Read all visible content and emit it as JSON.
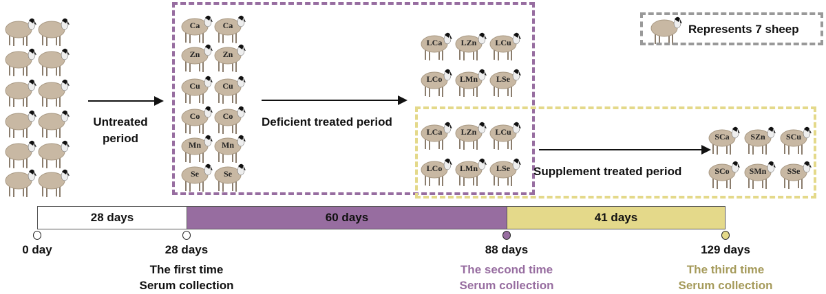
{
  "colors": {
    "deficient": "#976da0",
    "supplement": "#e4d98a",
    "supplement_text": "#a59a5a",
    "legend_border": "#999999",
    "sheep_body": "#c8b8a3"
  },
  "legend": {
    "label": "Represents 7 sheep",
    "icon": "sheep-icon"
  },
  "untreated": {
    "label_line1": "Untreated",
    "label_line2": "period"
  },
  "deficient": {
    "label": "Deficient treated period",
    "group_labels": [
      "Ca",
      "Zn",
      "Cu",
      "Co",
      "Mn",
      "Se"
    ],
    "result_labels": [
      "LCa",
      "LZn",
      "LCu",
      "LCo",
      "LMn",
      "LSe"
    ]
  },
  "supplement": {
    "label": "Supplement treated period",
    "start_labels": [
      "LCa",
      "LZn",
      "LCu",
      "LCo",
      "LMn",
      "LSe"
    ],
    "result_labels": [
      "SCa",
      "SZn",
      "SCu",
      "SCo",
      "SMn",
      "SSe"
    ]
  },
  "timeline": {
    "segments": [
      {
        "label": "28 days",
        "days": 28
      },
      {
        "label": "60 days",
        "days": 60
      },
      {
        "label": "41 days",
        "days": 41
      }
    ],
    "points": [
      {
        "label": "0 day",
        "line1": "",
        "line2": ""
      },
      {
        "label": "28 days",
        "line1": "The first time",
        "line2": "Serum collection"
      },
      {
        "label": "88 days",
        "line1": "The second time",
        "line2": "Serum collection"
      },
      {
        "label": "129 days",
        "line1": "The third time",
        "line2": "Serum collection"
      }
    ]
  }
}
